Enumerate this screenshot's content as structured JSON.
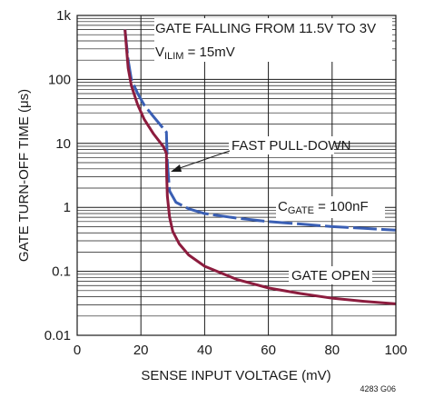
{
  "chart_data": {
    "type": "line",
    "title": "",
    "xlabel": "SENSE INPUT VOLTAGE (mV)",
    "ylabel": "GATE TURN-OFF TIME (μs)",
    "xlim": [
      0,
      100
    ],
    "ylim": [
      0.01,
      1000
    ],
    "yscale": "log",
    "grid": true,
    "x_ticks": [
      0,
      20,
      40,
      60,
      80,
      100
    ],
    "x_tick_labels": [
      "0",
      "20",
      "40",
      "60",
      "80",
      "100"
    ],
    "y_ticks": [
      0.01,
      0.1,
      1,
      10,
      100,
      1000
    ],
    "y_tick_labels": [
      "0.01",
      "0.1",
      "1",
      "10",
      "100",
      "1k"
    ],
    "annotations": {
      "condition_line1": "GATE FALLING FROM 11.5V TO 3V",
      "condition_line2_main": "V",
      "condition_line2_sub": "ILIM",
      "condition_line2_rest": " = 15mV",
      "fast_pulldown": "FAST PULL-DOWN",
      "cgate_main": "C",
      "cgate_sub": "GATE",
      "cgate_rest": " = 100nF",
      "gate_open": "GATE OPEN"
    },
    "series": [
      {
        "label_key": "cgate",
        "color": "#3a5fb4",
        "dash": true,
        "points": [
          [
            15,
            600
          ],
          [
            16,
            200
          ],
          [
            17,
            100
          ],
          [
            19,
            60
          ],
          [
            21,
            40
          ],
          [
            24,
            26
          ],
          [
            28,
            15
          ],
          [
            28,
            15
          ],
          [
            28.3,
            5
          ],
          [
            29,
            1.8
          ],
          [
            31,
            1.2
          ],
          [
            35,
            0.95
          ],
          [
            40,
            0.8
          ],
          [
            50,
            0.68
          ],
          [
            60,
            0.6
          ],
          [
            70,
            0.55
          ],
          [
            80,
            0.5
          ],
          [
            90,
            0.47
          ],
          [
            100,
            0.44
          ]
        ]
      },
      {
        "label_key": "gate_open",
        "color": "#8c1c3e",
        "dash": false,
        "points": [
          [
            15,
            600
          ],
          [
            16,
            150
          ],
          [
            17,
            80
          ],
          [
            19,
            40
          ],
          [
            21,
            24
          ],
          [
            24,
            14
          ],
          [
            27,
            9
          ],
          [
            28,
            7
          ],
          [
            28.1,
            3
          ],
          [
            28.3,
            1.5
          ],
          [
            29,
            0.7
          ],
          [
            30,
            0.42
          ],
          [
            32,
            0.27
          ],
          [
            35,
            0.18
          ],
          [
            40,
            0.12
          ],
          [
            50,
            0.075
          ],
          [
            60,
            0.055
          ],
          [
            70,
            0.045
          ],
          [
            80,
            0.038
          ],
          [
            90,
            0.034
          ],
          [
            100,
            0.031
          ]
        ]
      }
    ]
  },
  "figure_id": "4283 G06"
}
